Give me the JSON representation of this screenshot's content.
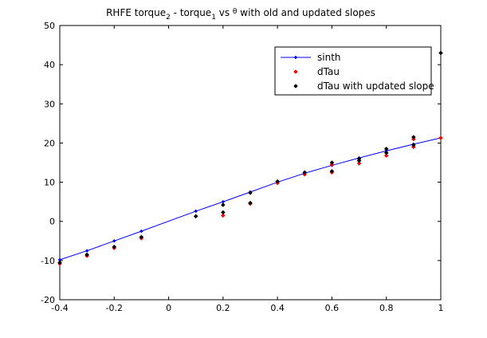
{
  "chart_data": {
    "type": "line",
    "title": {
      "p1": "RHFE torque",
      "sub1": "2",
      "p2": " - torque",
      "sub2": "1",
      "p3": " vs ",
      "sym": "θ",
      "p4": " with old and updated slopes"
    },
    "xlabel": "",
    "ylabel": "",
    "xlim": [
      -0.4,
      1.0
    ],
    "ylim": [
      -20,
      50
    ],
    "xticks": [
      -0.4,
      -0.2,
      0,
      0.2,
      0.4,
      0.6,
      0.8,
      1
    ],
    "yticks": [
      -20,
      -10,
      0,
      10,
      20,
      30,
      40,
      50
    ],
    "xtick_labels": [
      "-0.4",
      "-0.2",
      "0",
      "0.2",
      "0.4",
      "0.6",
      "0.8",
      "1"
    ],
    "ytick_labels": [
      "-20",
      "-10",
      "0",
      "10",
      "20",
      "30",
      "40",
      "50"
    ],
    "grid": false,
    "legend_position": "top-right",
    "series": [
      {
        "name": "sinth",
        "style": "line-marker",
        "color": "#0000ff",
        "x": [
          -0.4,
          -0.3,
          -0.2,
          -0.1,
          0.1,
          0.2,
          0.3,
          0.4,
          0.5,
          0.6,
          0.7,
          0.8,
          0.9,
          1.0
        ],
        "y": [
          -9.8,
          -7.5,
          -5.0,
          -2.5,
          2.6,
          5.0,
          7.5,
          10.0,
          12.3,
          14.3,
          16.2,
          18.0,
          19.7,
          21.3
        ]
      },
      {
        "name": "dTau",
        "style": "markers",
        "color": "#ff0000",
        "x": [
          -0.4,
          -0.3,
          -0.2,
          -0.1,
          0.1,
          0.2,
          0.3,
          0.4,
          0.5,
          0.6,
          0.6,
          0.7,
          0.7,
          0.8,
          0.8,
          0.9,
          0.9,
          1.0
        ],
        "y": [
          -10.8,
          -8.8,
          -6.8,
          -4.3,
          1.3,
          1.5,
          4.5,
          9.8,
          12.0,
          12.5,
          14.5,
          14.8,
          15.5,
          16.8,
          17.5,
          19.0,
          21.0,
          21.3
        ]
      },
      {
        "name": "dTau with updated slope",
        "style": "markers",
        "color": "#000000",
        "x": [
          -0.4,
          -0.3,
          -0.2,
          -0.1,
          0.1,
          0.2,
          0.2,
          0.3,
          0.3,
          0.4,
          0.5,
          0.6,
          0.6,
          0.7,
          0.7,
          0.8,
          0.8,
          0.9,
          0.9,
          1.0
        ],
        "y": [
          -10.5,
          -8.5,
          -6.5,
          -4.0,
          1.3,
          2.3,
          4.2,
          4.7,
          7.3,
          10.2,
          12.5,
          12.8,
          15.0,
          15.5,
          16.0,
          17.5,
          18.5,
          19.5,
          21.5,
          43.0
        ]
      }
    ]
  }
}
